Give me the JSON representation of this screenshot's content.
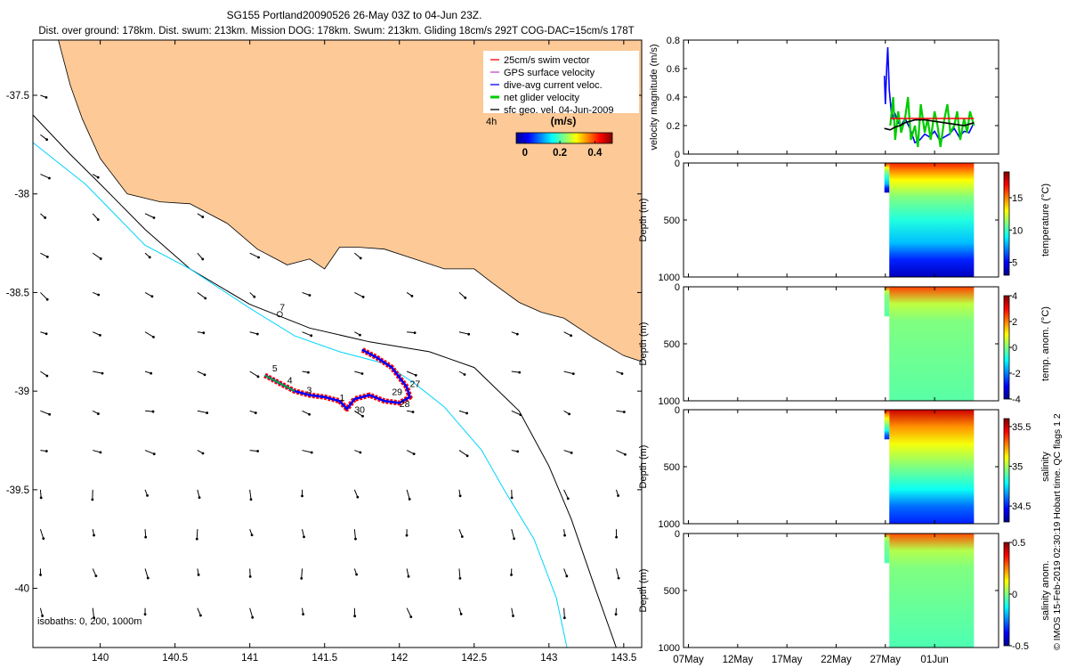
{
  "header": {
    "title": "SG155 Portland20090526 26-May 03Z to 04-Jun 23Z.",
    "subtitle": "Dist. over ground: 178km. Dist. swum: 213km. Mission DOG: 178km. Swum: 213km. Gliding 18cm/s 292T COG-DAC=15cm/s 178T"
  },
  "credit": "© IMOS 15-Feb-2019 02:30:19 Hobart time. QC flags 1  2",
  "colors": {
    "land": "#fcc997",
    "isobath_200": "#00d4ff",
    "isobath_1000": "#000000",
    "swim_vector": "#ff0000",
    "gps_velocity": "#cc44cc",
    "dive_avg": "#0000ff",
    "net_glider": "#00cc00",
    "sfc_geo": "#000000"
  },
  "chart_data": [
    {
      "type": "map",
      "xlim": [
        139.55,
        143.62
      ],
      "ylim": [
        -40.3,
        -37.22
      ],
      "x_ticks": [
        140,
        140.5,
        141,
        141.5,
        142,
        142.5,
        143,
        143.5
      ],
      "x_tick_labels": [
        "140",
        "140.5",
        "141",
        "141.5",
        "142",
        "142.5",
        "143",
        "143.5"
      ],
      "y_ticks": [
        -37.5,
        -38,
        -38.5,
        -39,
        -39.5,
        -40
      ],
      "y_tick_labels": [
        "-37.5",
        "-38",
        "-38.5",
        "-39",
        "-39.5",
        "-40"
      ],
      "legend": {
        "position": "top-right",
        "entries": [
          {
            "label": "25cm/s swim vector",
            "color": "#ff0000"
          },
          {
            "label": "GPS surface velocity",
            "color": "#cc44cc"
          },
          {
            "label": "dive-avg current veloc.",
            "color": "#0000ff"
          },
          {
            "label": "net glider velocity",
            "color": "#00cc00"
          },
          {
            "label": "sfc geo. vel. 04-Jun-2009",
            "color": "#000000"
          }
        ]
      },
      "colorbar": {
        "left_label": "4h",
        "title": "(m/s)",
        "range": [
          -0.05,
          0.5
        ],
        "ticks": [
          0,
          0.2,
          0.4
        ],
        "tick_labels": [
          "0",
          "0.2",
          "0.4"
        ]
      },
      "isobaths_label": "isobaths: 0, 200, 1000m",
      "coastline": [
        [
          139.55,
          -37.22
        ],
        [
          139.72,
          -37.22
        ],
        [
          139.8,
          -37.45
        ],
        [
          139.88,
          -37.62
        ],
        [
          140.0,
          -37.82
        ],
        [
          140.18,
          -38.0
        ],
        [
          140.4,
          -38.04
        ],
        [
          140.6,
          -38.05
        ],
        [
          140.85,
          -38.15
        ],
        [
          141.05,
          -38.28
        ],
        [
          141.25,
          -38.36
        ],
        [
          141.4,
          -38.33
        ],
        [
          141.5,
          -38.38
        ],
        [
          141.6,
          -38.27
        ],
        [
          141.72,
          -38.27
        ],
        [
          141.9,
          -38.28
        ],
        [
          142.1,
          -38.33
        ],
        [
          142.3,
          -38.38
        ],
        [
          142.5,
          -38.38
        ],
        [
          142.62,
          -38.45
        ],
        [
          142.8,
          -38.55
        ],
        [
          142.95,
          -38.6
        ],
        [
          143.1,
          -38.63
        ],
        [
          143.3,
          -38.73
        ],
        [
          143.5,
          -38.82
        ],
        [
          143.62,
          -38.85
        ],
        [
          143.62,
          -37.22
        ]
      ],
      "isobath_1000": [
        [
          139.55,
          -37.6
        ],
        [
          139.8,
          -37.8
        ],
        [
          140.0,
          -37.95
        ],
        [
          140.3,
          -38.18
        ],
        [
          140.6,
          -38.38
        ],
        [
          141.0,
          -38.56
        ],
        [
          141.4,
          -38.68
        ],
        [
          141.8,
          -38.75
        ],
        [
          142.2,
          -38.8
        ],
        [
          142.5,
          -38.88
        ],
        [
          142.8,
          -39.1
        ],
        [
          143.0,
          -39.38
        ],
        [
          143.15,
          -39.65
        ],
        [
          143.3,
          -39.98
        ],
        [
          143.45,
          -40.3
        ]
      ],
      "isobath_200": [
        [
          139.55,
          -37.74
        ],
        [
          139.9,
          -37.95
        ],
        [
          140.3,
          -38.26
        ],
        [
          140.6,
          -38.38
        ],
        [
          141.0,
          -38.58
        ],
        [
          141.3,
          -38.72
        ],
        [
          141.6,
          -38.8
        ],
        [
          141.9,
          -38.86
        ],
        [
          142.1,
          -38.96
        ],
        [
          142.3,
          -39.08
        ],
        [
          142.55,
          -39.3
        ],
        [
          142.7,
          -39.5
        ],
        [
          142.9,
          -39.75
        ],
        [
          143.05,
          -40.05
        ],
        [
          143.12,
          -40.3
        ]
      ],
      "glider_track": [
        [
          141.1,
          -38.92
        ],
        [
          141.2,
          -38.96
        ],
        [
          141.3,
          -39.0
        ],
        [
          141.4,
          -39.02
        ],
        [
          141.5,
          -39.03
        ],
        [
          141.6,
          -39.05
        ],
        [
          141.65,
          -39.09
        ],
        [
          141.7,
          -39.04
        ],
        [
          141.8,
          -39.02
        ],
        [
          141.9,
          -39.05
        ],
        [
          142.0,
          -39.06
        ],
        [
          142.07,
          -39.03
        ],
        [
          142.05,
          -38.98
        ],
        [
          141.95,
          -38.88
        ],
        [
          141.85,
          -38.83
        ],
        [
          141.75,
          -38.79
        ]
      ],
      "track_labels": [
        {
          "text": "7",
          "lon": 141.2,
          "lat": -38.59
        },
        {
          "text": "5",
          "lon": 141.15,
          "lat": -38.9
        },
        {
          "text": "4",
          "lon": 141.25,
          "lat": -38.96
        },
        {
          "text": "3",
          "lon": 141.38,
          "lat": -39.01
        },
        {
          "text": "1",
          "lon": 141.6,
          "lat": -39.05
        },
        {
          "text": "29",
          "lon": 141.95,
          "lat": -39.02
        },
        {
          "text": "27",
          "lon": 142.07,
          "lat": -38.98
        },
        {
          "text": "30",
          "lon": 141.7,
          "lat": -39.11
        },
        {
          "text": "28",
          "lon": 142.0,
          "lat": -39.08
        }
      ],
      "vector_field": {
        "lon": [
          139.6,
          139.95,
          140.3,
          140.65,
          141.0,
          141.35,
          141.7,
          142.05,
          142.4,
          142.75,
          143.1,
          143.45
        ],
        "lat": [
          -37.5,
          -37.7,
          -37.9,
          -38.1,
          -38.3,
          -38.5,
          -38.7,
          -38.9,
          -39.1,
          -39.3,
          -39.5,
          -39.7,
          -39.9,
          -40.1
        ]
      }
    },
    {
      "type": "line",
      "ylabel": "velocity magnitude (m/s)",
      "ylim": [
        0,
        0.8
      ],
      "y_ticks": [
        0,
        0.2,
        0.4,
        0.6,
        0.8
      ],
      "y_tick_labels": [
        "0",
        "0.2",
        "0.4",
        "0.6",
        "0.8"
      ],
      "series": [
        {
          "color": "#0000ff",
          "x": [
            26.9,
            27.0,
            27.15,
            27.25,
            27.4,
            27.6,
            27.8,
            28.0,
            28.3,
            28.6,
            29.0,
            29.5,
            30.0,
            30.5,
            31.0,
            31.5,
            32.0,
            32.5,
            33.0,
            33.5,
            34.0,
            34.5,
            35.0,
            35.5,
            36.0
          ],
          "values": [
            0.55,
            0.35,
            0.62,
            0.75,
            0.45,
            0.3,
            0.25,
            0.28,
            0.22,
            0.2,
            0.25,
            0.18,
            0.08,
            0.1,
            0.14,
            0.12,
            0.16,
            0.1,
            0.12,
            0.14,
            0.18,
            0.12,
            0.16,
            0.15,
            0.22
          ]
        },
        {
          "color": "#00cc00",
          "x": [
            27.5,
            27.8,
            28.0,
            28.3,
            28.6,
            29.0,
            29.3,
            29.6,
            30.0,
            30.3,
            30.6,
            31.0,
            31.3,
            31.6,
            32.0,
            32.3,
            32.6,
            33.0,
            33.3,
            33.6,
            34.0,
            34.3,
            34.6,
            35.0,
            35.3,
            35.6,
            36.0
          ],
          "values": [
            0.2,
            0.4,
            0.1,
            0.3,
            0.15,
            0.25,
            0.4,
            0.1,
            0.2,
            0.05,
            0.35,
            0.15,
            0.25,
            0.1,
            0.3,
            0.2,
            0.05,
            0.25,
            0.35,
            0.15,
            0.2,
            0.3,
            0.1,
            0.25,
            0.15,
            0.3,
            0.2
          ]
        },
        {
          "color": "#ff0000",
          "x": [
            27.5,
            36.0
          ],
          "values": [
            0.25,
            0.25
          ]
        },
        {
          "color": "#000000",
          "x": [
            26.9,
            27.5,
            28.0,
            28.5,
            29.0,
            29.5,
            30.0,
            31.0,
            32.0,
            33.0,
            34.0,
            35.0,
            36.0
          ],
          "values": [
            0.18,
            0.17,
            0.19,
            0.2,
            0.22,
            0.23,
            0.24,
            0.24,
            0.23,
            0.22,
            0.21,
            0.2,
            0.22
          ]
        }
      ]
    },
    {
      "type": "heatmap",
      "ylabel": "Depth (m)",
      "colorbar_label": "temperature (°C)",
      "ylim": [
        1000,
        0
      ],
      "y_ticks": [
        0,
        500,
        1000
      ],
      "y_tick_labels": [
        "0",
        "500",
        "1000"
      ],
      "cbar_range": [
        3,
        19
      ],
      "cbar_ticks": [
        5,
        10,
        15
      ],
      "cbar_tick_labels": [
        "5",
        "10",
        "15"
      ],
      "profile": [
        {
          "depth": 0,
          "value": 16.5
        },
        {
          "depth": 150,
          "value": 13
        },
        {
          "depth": 300,
          "value": 11
        },
        {
          "depth": 500,
          "value": 9.5
        },
        {
          "depth": 700,
          "value": 8
        },
        {
          "depth": 850,
          "value": 5.5
        },
        {
          "depth": 1000,
          "value": 4
        }
      ]
    },
    {
      "type": "heatmap",
      "ylabel": "Depth (m)",
      "colorbar_label": "temp. anom. (°C)",
      "ylim": [
        1000,
        0
      ],
      "y_ticks": [
        0,
        500,
        1000
      ],
      "y_tick_labels": [
        "0",
        "500",
        "1000"
      ],
      "cbar_range": [
        -4,
        4
      ],
      "cbar_ticks": [
        -4,
        -2,
        0,
        2,
        4
      ],
      "cbar_tick_labels": [
        "-4",
        "-2",
        "0",
        "2",
        "4"
      ],
      "profile": [
        {
          "depth": 0,
          "value": 2.5
        },
        {
          "depth": 150,
          "value": 0.5
        },
        {
          "depth": 300,
          "value": 0
        },
        {
          "depth": 1000,
          "value": -0.3
        }
      ]
    },
    {
      "type": "heatmap",
      "ylabel": "Depth (m)",
      "colorbar_label": "salinity",
      "ylim": [
        1000,
        0
      ],
      "y_ticks": [
        0,
        500,
        1000
      ],
      "y_tick_labels": [
        "0",
        "500",
        "1000"
      ],
      "cbar_range": [
        34.3,
        35.6
      ],
      "cbar_ticks": [
        34.5,
        35,
        35.5
      ],
      "cbar_tick_labels": [
        "34.5",
        "35",
        "35.5"
      ],
      "profile": [
        {
          "depth": 0,
          "value": 35.5
        },
        {
          "depth": 150,
          "value": 35.25
        },
        {
          "depth": 300,
          "value": 35.1
        },
        {
          "depth": 500,
          "value": 34.95
        },
        {
          "depth": 700,
          "value": 34.8
        },
        {
          "depth": 850,
          "value": 34.6
        },
        {
          "depth": 1000,
          "value": 34.5
        }
      ]
    },
    {
      "type": "heatmap",
      "ylabel": "Depth (m)",
      "colorbar_label": "salinity anom.",
      "ylim": [
        1000,
        0
      ],
      "y_ticks": [
        0,
        500,
        1000
      ],
      "y_tick_labels": [
        "0",
        "500",
        "1000"
      ],
      "cbar_range": [
        -0.5,
        0.5
      ],
      "cbar_ticks": [
        -0.5,
        0,
        0.5
      ],
      "cbar_tick_labels": [
        "-0.5",
        "0",
        "0.5"
      ],
      "profile": [
        {
          "depth": 0,
          "value": 0.3
        },
        {
          "depth": 150,
          "value": 0.05
        },
        {
          "depth": 300,
          "value": 0
        },
        {
          "depth": 1000,
          "value": -0.05
        }
      ]
    }
  ],
  "time_axis": {
    "xlim": [
      6.5,
      38.5
    ],
    "data_range": [
      26.9,
      36.0
    ],
    "tick_positions": [
      7,
      12,
      17,
      22,
      27,
      32
    ],
    "tick_labels": [
      "07May",
      "12May",
      "17May",
      "22May",
      "27May",
      "01Jun"
    ]
  }
}
